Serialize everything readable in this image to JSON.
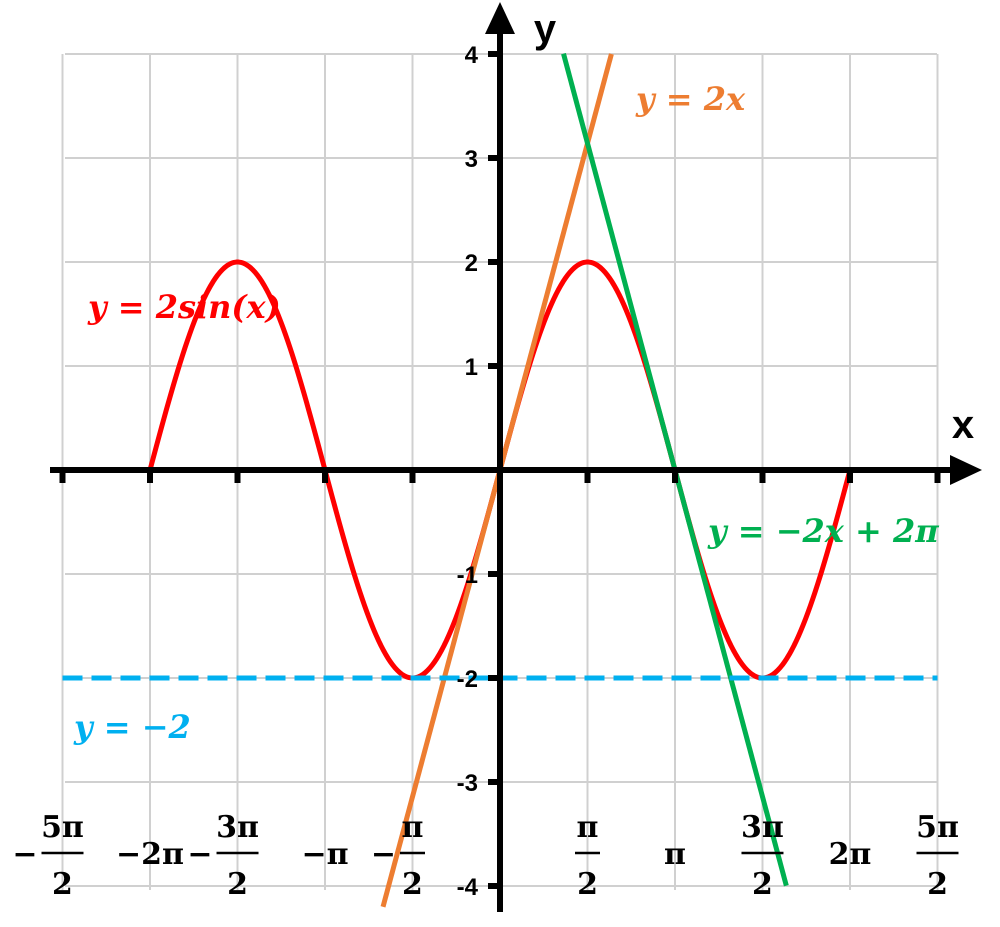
{
  "chart_data": {
    "type": "line",
    "title": "",
    "xlabel": "x",
    "ylabel": "y",
    "xlim": [
      -7.854,
      7.854
    ],
    "ylim": [
      -4,
      4
    ],
    "grid": true,
    "x_ticks": [
      {
        "value": -7.854,
        "label": "−5π/2"
      },
      {
        "value": -6.283,
        "label": "−2π"
      },
      {
        "value": -4.712,
        "label": "−3π/2"
      },
      {
        "value": -3.1416,
        "label": "−π"
      },
      {
        "value": -1.5708,
        "label": "−π/2"
      },
      {
        "value": 1.5708,
        "label": "π/2"
      },
      {
        "value": 3.1416,
        "label": "π"
      },
      {
        "value": 4.712,
        "label": "3π/2"
      },
      {
        "value": 6.283,
        "label": "2π"
      },
      {
        "value": 7.854,
        "label": "5π/2"
      }
    ],
    "y_ticks": [
      {
        "value": 4,
        "label": "4"
      },
      {
        "value": 3,
        "label": "3"
      },
      {
        "value": 2,
        "label": "2"
      },
      {
        "value": 1,
        "label": "1"
      },
      {
        "value": -1,
        "label": "-1"
      },
      {
        "value": -2,
        "label": "-2"
      },
      {
        "value": -3,
        "label": "-3"
      },
      {
        "value": -4,
        "label": "-4"
      }
    ],
    "series": [
      {
        "name": "y = 2sin(x)",
        "color": "#ff0000",
        "style": "solid",
        "function": "2*sin(x)",
        "x_range": [
          -6.283,
          6.283
        ]
      },
      {
        "name": "y = 2x",
        "color": "#ed7d31",
        "style": "solid",
        "function": "2*x",
        "x_range": [
          -2.1,
          2.0
        ]
      },
      {
        "name": "y = −2x + 2π",
        "color": "#00b050",
        "style": "solid",
        "function": "-2*x+2*pi",
        "x_range": [
          1.14,
          5.14
        ]
      },
      {
        "name": "y = −2",
        "color": "#00b0f0",
        "style": "dashed",
        "function": "-2",
        "x_range": [
          -7.854,
          7.854
        ]
      }
    ]
  }
}
